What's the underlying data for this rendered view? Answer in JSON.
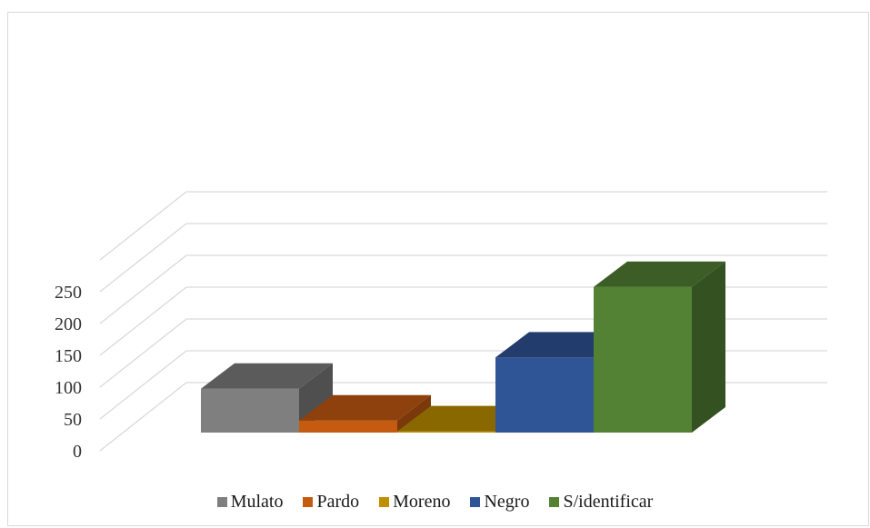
{
  "chart_data": {
    "type": "bar",
    "categories": [
      "Mulato",
      "Pardo",
      "Moreno",
      "Negro",
      "S/identificar"
    ],
    "values": [
      69,
      19,
      2,
      118,
      229
    ],
    "ylim": [
      0,
      250
    ],
    "yticks": [
      0,
      50,
      100,
      150,
      200,
      250
    ],
    "title": "",
    "xlabel": "",
    "ylabel": "",
    "grid": true,
    "legend_position": "bottom",
    "colors": [
      "#7f7f7f",
      "#c55a11",
      "#bf9000",
      "#2f5597",
      "#548235"
    ],
    "legend": [
      {
        "label": "Mulato",
        "color": "#7f7f7f"
      },
      {
        "label": "Pardo",
        "color": "#c55a11"
      },
      {
        "label": "Moreno",
        "color": "#bf9000"
      },
      {
        "label": "Negro",
        "color": "#2f5597"
      },
      {
        "label": "S/identificar",
        "color": "#548235"
      }
    ]
  }
}
